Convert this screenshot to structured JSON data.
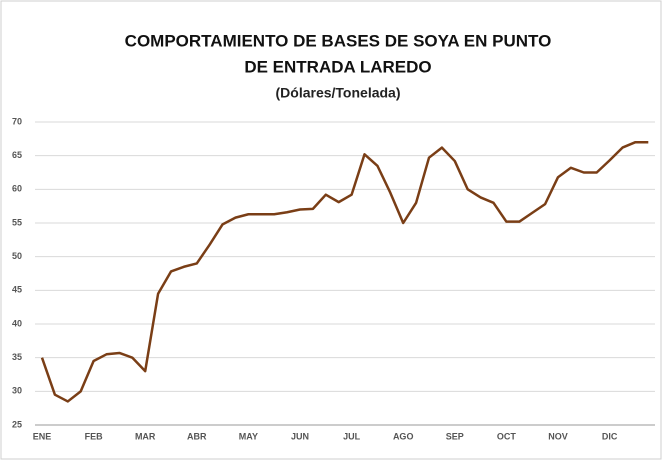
{
  "chart_data": {
    "type": "line",
    "title": [
      "COMPORTAMIENTO DE BASES DE SOYA EN PUNTO",
      "DE ENTRADA LAREDO"
    ],
    "subtitle": "(Dólares/Tonelada)",
    "categories": [
      "ENE",
      null,
      null,
      null,
      "FEB",
      null,
      null,
      null,
      "MAR",
      null,
      null,
      null,
      "ABR",
      null,
      null,
      null,
      "MAY",
      null,
      null,
      null,
      "JUN",
      null,
      null,
      null,
      "JUL",
      null,
      null,
      null,
      "AGO",
      null,
      null,
      null,
      "SEP",
      null,
      null,
      null,
      "OCT",
      null,
      null,
      null,
      "NOV",
      null,
      null,
      null,
      "DIC",
      null,
      null,
      null
    ],
    "series": [
      {
        "name": "Bases de soya",
        "color": "#7a3e16",
        "values": [
          35,
          29.5,
          28.5,
          30,
          34.5,
          35.5,
          35.7,
          35,
          33,
          44.5,
          47.8,
          48.5,
          49,
          51.8,
          54.8,
          55.8,
          56.3,
          56.3,
          56.3,
          56.6,
          57,
          57.1,
          59.2,
          58.1,
          59.2,
          65.2,
          63.5,
          59.5,
          55,
          58,
          64.7,
          66.2,
          64.2,
          60,
          58.8,
          58,
          55.2,
          55.2,
          56.5,
          57.8,
          61.8,
          63.2,
          62.5,
          62.5,
          64.3,
          66.2,
          67,
          67
        ]
      }
    ],
    "ylim": [
      25,
      70
    ],
    "yticks": [
      25,
      30,
      35,
      40,
      45,
      50,
      55,
      60,
      65,
      70
    ],
    "grid": true
  }
}
